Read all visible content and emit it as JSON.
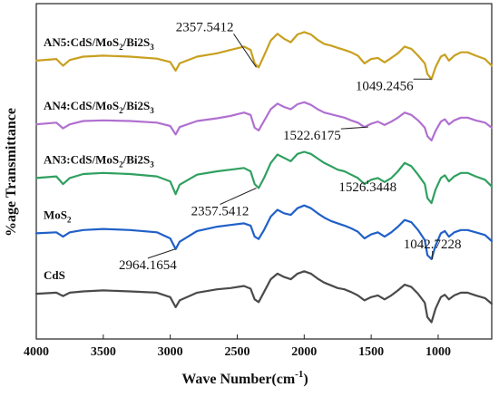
{
  "chart_data": {
    "type": "line",
    "xlabel": "Wave Number(cm",
    "xlabel_sup": "-1",
    "xlabel_close": ")",
    "ylabel": "%age Transmittance",
    "xlim": [
      4000,
      600
    ],
    "x_reversed": true,
    "xticks": [
      "4000",
      "3500",
      "3000",
      "2500",
      "2000",
      "1500",
      "1000"
    ],
    "grid": false,
    "series": [
      {
        "key": "an5",
        "label_main": "AN5:CdS/MoS",
        "label_sub": "2",
        "label_tail": "/Bi2S",
        "label_sub2": "3",
        "color": "#c8a020",
        "base": 0.83,
        "values": [
          [
            4000,
            0.83
          ],
          [
            3850,
            0.835
          ],
          [
            3800,
            0.815
          ],
          [
            3750,
            0.832
          ],
          [
            3650,
            0.842
          ],
          [
            3500,
            0.845
          ],
          [
            3300,
            0.842
          ],
          [
            3100,
            0.836
          ],
          [
            3000,
            0.826
          ],
          [
            2960,
            0.8
          ],
          [
            2930,
            0.822
          ],
          [
            2800,
            0.842
          ],
          [
            2650,
            0.852
          ],
          [
            2550,
            0.862
          ],
          [
            2450,
            0.872
          ],
          [
            2400,
            0.862
          ],
          [
            2370,
            0.822
          ],
          [
            2340,
            0.81
          ],
          [
            2300,
            0.845
          ],
          [
            2250,
            0.89
          ],
          [
            2200,
            0.91
          ],
          [
            2150,
            0.895
          ],
          [
            2100,
            0.885
          ],
          [
            2050,
            0.908
          ],
          [
            2000,
            0.915
          ],
          [
            1950,
            0.908
          ],
          [
            1900,
            0.892
          ],
          [
            1850,
            0.88
          ],
          [
            1800,
            0.875
          ],
          [
            1750,
            0.868
          ],
          [
            1700,
            0.862
          ],
          [
            1650,
            0.855
          ],
          [
            1600,
            0.845
          ],
          [
            1550,
            0.822
          ],
          [
            1500,
            0.835
          ],
          [
            1450,
            0.838
          ],
          [
            1400,
            0.825
          ],
          [
            1350,
            0.838
          ],
          [
            1300,
            0.852
          ],
          [
            1250,
            0.872
          ],
          [
            1200,
            0.865
          ],
          [
            1150,
            0.845
          ],
          [
            1100,
            0.822
          ],
          [
            1080,
            0.79
          ],
          [
            1050,
            0.775
          ],
          [
            1020,
            0.81
          ],
          [
            980,
            0.842
          ],
          [
            950,
            0.848
          ],
          [
            920,
            0.83
          ],
          [
            880,
            0.845
          ],
          [
            830,
            0.855
          ],
          [
            780,
            0.855
          ],
          [
            720,
            0.845
          ],
          [
            650,
            0.835
          ],
          [
            600,
            0.815
          ]
        ]
      },
      {
        "key": "an4",
        "label_main": "AN4:CdS/MoS",
        "label_sub": "2",
        "label_tail": "/Bi2S",
        "label_sub2": "3",
        "color": "#b070d0",
        "base": 0.64,
        "values": [
          [
            4000,
            0.64
          ],
          [
            3850,
            0.645
          ],
          [
            3800,
            0.628
          ],
          [
            3750,
            0.64
          ],
          [
            3650,
            0.65
          ],
          [
            3500,
            0.652
          ],
          [
            3300,
            0.65
          ],
          [
            3100,
            0.645
          ],
          [
            3000,
            0.635
          ],
          [
            2960,
            0.61
          ],
          [
            2930,
            0.632
          ],
          [
            2800,
            0.65
          ],
          [
            2650,
            0.658
          ],
          [
            2550,
            0.665
          ],
          [
            2450,
            0.675
          ],
          [
            2400,
            0.668
          ],
          [
            2370,
            0.63
          ],
          [
            2340,
            0.622
          ],
          [
            2300,
            0.65
          ],
          [
            2250,
            0.685
          ],
          [
            2200,
            0.702
          ],
          [
            2150,
            0.692
          ],
          [
            2100,
            0.685
          ],
          [
            2050,
            0.7
          ],
          [
            2000,
            0.706
          ],
          [
            1950,
            0.698
          ],
          [
            1900,
            0.685
          ],
          [
            1850,
            0.675
          ],
          [
            1800,
            0.67
          ],
          [
            1750,
            0.665
          ],
          [
            1700,
            0.66
          ],
          [
            1650,
            0.652
          ],
          [
            1600,
            0.645
          ],
          [
            1550,
            0.632
          ],
          [
            1500,
            0.642
          ],
          [
            1450,
            0.648
          ],
          [
            1400,
            0.638
          ],
          [
            1350,
            0.648
          ],
          [
            1300,
            0.66
          ],
          [
            1250,
            0.675
          ],
          [
            1200,
            0.668
          ],
          [
            1150,
            0.652
          ],
          [
            1100,
            0.63
          ],
          [
            1080,
            0.605
          ],
          [
            1050,
            0.592
          ],
          [
            1020,
            0.62
          ],
          [
            980,
            0.648
          ],
          [
            950,
            0.655
          ],
          [
            920,
            0.64
          ],
          [
            880,
            0.652
          ],
          [
            830,
            0.66
          ],
          [
            780,
            0.66
          ],
          [
            720,
            0.652
          ],
          [
            650,
            0.645
          ],
          [
            600,
            0.63
          ]
        ]
      },
      {
        "key": "an3",
        "label_main": "AN3:CdS/MoS",
        "label_sub": "2",
        "label_tail": "/Bi2S",
        "label_sub2": "3",
        "color": "#30a060",
        "base": 0.48,
        "values": [
          [
            4000,
            0.48
          ],
          [
            3850,
            0.485
          ],
          [
            3800,
            0.462
          ],
          [
            3750,
            0.48
          ],
          [
            3650,
            0.492
          ],
          [
            3500,
            0.495
          ],
          [
            3300,
            0.492
          ],
          [
            3100,
            0.485
          ],
          [
            3000,
            0.47
          ],
          [
            2960,
            0.432
          ],
          [
            2930,
            0.46
          ],
          [
            2800,
            0.49
          ],
          [
            2650,
            0.5
          ],
          [
            2550,
            0.505
          ],
          [
            2450,
            0.51
          ],
          [
            2400,
            0.5
          ],
          [
            2370,
            0.462
          ],
          [
            2340,
            0.45
          ],
          [
            2300,
            0.48
          ],
          [
            2250,
            0.525
          ],
          [
            2200,
            0.55
          ],
          [
            2150,
            0.54
          ],
          [
            2100,
            0.53
          ],
          [
            2050,
            0.552
          ],
          [
            2000,
            0.558
          ],
          [
            1950,
            0.552
          ],
          [
            1900,
            0.538
          ],
          [
            1850,
            0.525
          ],
          [
            1800,
            0.515
          ],
          [
            1750,
            0.505
          ],
          [
            1700,
            0.5
          ],
          [
            1650,
            0.49
          ],
          [
            1600,
            0.48
          ],
          [
            1550,
            0.462
          ],
          [
            1500,
            0.475
          ],
          [
            1450,
            0.48
          ],
          [
            1400,
            0.468
          ],
          [
            1350,
            0.48
          ],
          [
            1300,
            0.5
          ],
          [
            1250,
            0.525
          ],
          [
            1200,
            0.515
          ],
          [
            1150,
            0.49
          ],
          [
            1100,
            0.462
          ],
          [
            1080,
            0.42
          ],
          [
            1050,
            0.405
          ],
          [
            1020,
            0.445
          ],
          [
            980,
            0.48
          ],
          [
            950,
            0.488
          ],
          [
            920,
            0.47
          ],
          [
            880,
            0.485
          ],
          [
            830,
            0.495
          ],
          [
            780,
            0.495
          ],
          [
            720,
            0.485
          ],
          [
            650,
            0.475
          ],
          [
            600,
            0.455
          ]
        ]
      },
      {
        "key": "mos2",
        "label_main": "MoS",
        "label_sub": "2",
        "label_tail": "",
        "label_sub2": "",
        "color": "#2060c8",
        "base": 0.315,
        "values": [
          [
            4000,
            0.315
          ],
          [
            3850,
            0.318
          ],
          [
            3800,
            0.305
          ],
          [
            3750,
            0.318
          ],
          [
            3650,
            0.325
          ],
          [
            3500,
            0.328
          ],
          [
            3300,
            0.325
          ],
          [
            3100,
            0.318
          ],
          [
            3000,
            0.3
          ],
          [
            2960,
            0.268
          ],
          [
            2930,
            0.29
          ],
          [
            2800,
            0.322
          ],
          [
            2650,
            0.335
          ],
          [
            2550,
            0.34
          ],
          [
            2450,
            0.345
          ],
          [
            2400,
            0.338
          ],
          [
            2370,
            0.305
          ],
          [
            2340,
            0.298
          ],
          [
            2300,
            0.325
          ],
          [
            2250,
            0.365
          ],
          [
            2200,
            0.385
          ],
          [
            2150,
            0.375
          ],
          [
            2100,
            0.37
          ],
          [
            2050,
            0.39
          ],
          [
            2000,
            0.398
          ],
          [
            1950,
            0.39
          ],
          [
            1900,
            0.375
          ],
          [
            1850,
            0.362
          ],
          [
            1800,
            0.352
          ],
          [
            1750,
            0.345
          ],
          [
            1700,
            0.338
          ],
          [
            1650,
            0.33
          ],
          [
            1600,
            0.32
          ],
          [
            1550,
            0.3
          ],
          [
            1500,
            0.312
          ],
          [
            1450,
            0.318
          ],
          [
            1400,
            0.305
          ],
          [
            1350,
            0.318
          ],
          [
            1300,
            0.335
          ],
          [
            1250,
            0.355
          ],
          [
            1200,
            0.348
          ],
          [
            1150,
            0.325
          ],
          [
            1100,
            0.295
          ],
          [
            1080,
            0.25
          ],
          [
            1050,
            0.238
          ],
          [
            1020,
            0.278
          ],
          [
            980,
            0.315
          ],
          [
            950,
            0.322
          ],
          [
            920,
            0.305
          ],
          [
            880,
            0.318
          ],
          [
            830,
            0.325
          ],
          [
            780,
            0.325
          ],
          [
            720,
            0.318
          ],
          [
            650,
            0.31
          ],
          [
            600,
            0.292
          ]
        ]
      },
      {
        "key": "cds",
        "label_main": "CdS",
        "label_sub": "",
        "label_tail": "",
        "label_sub2": "",
        "color": "#4a4a4a",
        "base": 0.135,
        "values": [
          [
            4000,
            0.135
          ],
          [
            3850,
            0.138
          ],
          [
            3800,
            0.128
          ],
          [
            3750,
            0.138
          ],
          [
            3650,
            0.142
          ],
          [
            3500,
            0.145
          ],
          [
            3300,
            0.142
          ],
          [
            3100,
            0.138
          ],
          [
            3000,
            0.125
          ],
          [
            2960,
            0.095
          ],
          [
            2930,
            0.115
          ],
          [
            2800,
            0.138
          ],
          [
            2650,
            0.148
          ],
          [
            2550,
            0.152
          ],
          [
            2450,
            0.158
          ],
          [
            2400,
            0.15
          ],
          [
            2370,
            0.118
          ],
          [
            2340,
            0.11
          ],
          [
            2300,
            0.14
          ],
          [
            2250,
            0.178
          ],
          [
            2200,
            0.195
          ],
          [
            2150,
            0.185
          ],
          [
            2100,
            0.178
          ],
          [
            2050,
            0.195
          ],
          [
            2000,
            0.202
          ],
          [
            1950,
            0.195
          ],
          [
            1900,
            0.18
          ],
          [
            1850,
            0.168
          ],
          [
            1800,
            0.16
          ],
          [
            1750,
            0.152
          ],
          [
            1700,
            0.148
          ],
          [
            1650,
            0.14
          ],
          [
            1600,
            0.13
          ],
          [
            1550,
            0.115
          ],
          [
            1500,
            0.125
          ],
          [
            1450,
            0.13
          ],
          [
            1400,
            0.118
          ],
          [
            1350,
            0.13
          ],
          [
            1300,
            0.145
          ],
          [
            1250,
            0.162
          ],
          [
            1200,
            0.155
          ],
          [
            1150,
            0.135
          ],
          [
            1100,
            0.108
          ],
          [
            1080,
            0.065
          ],
          [
            1050,
            0.05
          ],
          [
            1020,
            0.09
          ],
          [
            980,
            0.125
          ],
          [
            950,
            0.132
          ],
          [
            920,
            0.118
          ],
          [
            880,
            0.13
          ],
          [
            830,
            0.138
          ],
          [
            780,
            0.138
          ],
          [
            720,
            0.13
          ],
          [
            650,
            0.122
          ],
          [
            600,
            0.105
          ]
        ]
      }
    ],
    "annotations": [
      {
        "text": "2357.5412",
        "x": 2357.5,
        "y": 0.81
      },
      {
        "text": "1049.2456",
        "x": 1049.2,
        "y": 0.775
      },
      {
        "text": "1522.6175",
        "x": 1522.6,
        "y": 0.632
      },
      {
        "text": "1526.3448",
        "x": 1526.3,
        "y": 0.462
      },
      {
        "text": "2357.5412",
        "x": 2357.5,
        "y": 0.45
      },
      {
        "text": "2964.1654",
        "x": 2964.2,
        "y": 0.268
      },
      {
        "text": "1042.7228",
        "x": 1042.7,
        "y": 0.238
      }
    ]
  }
}
